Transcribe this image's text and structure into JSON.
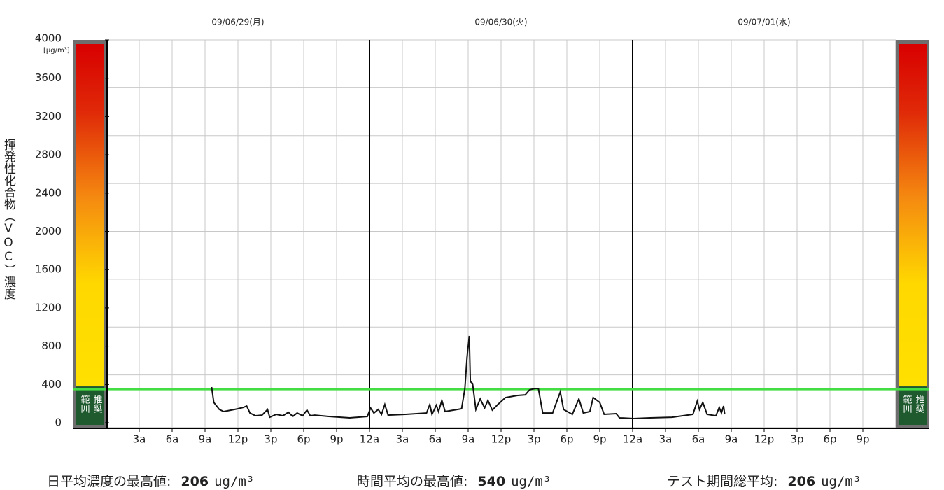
{
  "chart_data": {
    "type": "line",
    "days": [
      "09/06/29(月)",
      "09/06/30(火)",
      "09/07/01(水)"
    ],
    "unit_label": "[μg/m³]",
    "y_label": "揮発性化合物（VOC）濃度",
    "recommended_label": [
      "推奨",
      "範囲"
    ],
    "reference_line": 350,
    "reference_color": "#44dd44",
    "line_color": "#111111",
    "xlim": [
      0,
      72
    ],
    "ylim": [
      0,
      4000
    ],
    "xticks": [
      {
        "value": 3,
        "label": "3a"
      },
      {
        "value": 6,
        "label": "6a"
      },
      {
        "value": 9,
        "label": "9a"
      },
      {
        "value": 12,
        "label": "12p"
      },
      {
        "value": 15,
        "label": "3p"
      },
      {
        "value": 18,
        "label": "6p"
      },
      {
        "value": 21,
        "label": "9p"
      },
      {
        "value": 24,
        "label": "12a"
      },
      {
        "value": 27,
        "label": "3a"
      },
      {
        "value": 30,
        "label": "6a"
      },
      {
        "value": 33,
        "label": "9a"
      },
      {
        "value": 36,
        "label": "12p"
      },
      {
        "value": 39,
        "label": "3p"
      },
      {
        "value": 42,
        "label": "6p"
      },
      {
        "value": 45,
        "label": "9p"
      },
      {
        "value": 48,
        "label": "12a"
      },
      {
        "value": 51,
        "label": "3a"
      },
      {
        "value": 54,
        "label": "6a"
      },
      {
        "value": 57,
        "label": "9a"
      },
      {
        "value": 60,
        "label": "12p"
      },
      {
        "value": 63,
        "label": "3p"
      },
      {
        "value": 66,
        "label": "6p"
      },
      {
        "value": 69,
        "label": "9p"
      }
    ],
    "yticks": [
      0,
      400,
      800,
      1200,
      1600,
      2000,
      2400,
      2800,
      3200,
      3600,
      4000
    ],
    "ygrid": [
      500,
      1000,
      1500,
      2000,
      2500,
      3000,
      3500,
      4000
    ],
    "day_separators": [
      24,
      48
    ],
    "grid": true,
    "x": [
      9.6,
      9.8,
      10.3,
      10.7,
      11.4,
      12.0,
      12.5,
      12.8,
      13.1,
      13.6,
      14.2,
      14.7,
      14.9,
      15.5,
      16.1,
      16.6,
      17.0,
      17.4,
      17.9,
      18.3,
      18.6,
      19.0,
      20.3,
      22.2,
      23.8,
      24.1,
      24.4,
      24.8,
      25.1,
      25.4,
      25.7,
      27.3,
      29.2,
      29.5,
      29.7,
      30.1,
      30.3,
      30.6,
      30.9,
      32.4,
      32.7,
      32.9,
      33.1,
      33.2,
      33.4,
      33.7,
      34.1,
      34.5,
      34.8,
      35.2,
      35.7,
      36.4,
      37.5,
      38.2,
      38.6,
      39.1,
      39.4,
      39.8,
      40.7,
      41.4,
      41.7,
      42.5,
      43.1,
      43.5,
      44.1,
      44.4,
      45.0,
      45.4,
      46.5,
      46.8,
      48.1,
      49.6,
      51.6,
      53.5,
      53.9,
      54.1,
      54.4,
      54.8,
      55.6,
      55.9,
      56.1,
      56.3,
      56.4
    ],
    "values": [
      373,
      212,
      139,
      117,
      132,
      146,
      161,
      175,
      102,
      73,
      80,
      139,
      58,
      88,
      73,
      110,
      66,
      102,
      73,
      132,
      73,
      80,
      66,
      51,
      66,
      154,
      102,
      139,
      88,
      190,
      80,
      88,
      102,
      190,
      88,
      183,
      117,
      234,
      117,
      146,
      358,
      687,
      907,
      431,
      410,
      139,
      249,
      154,
      234,
      132,
      190,
      263,
      285,
      292,
      344,
      358,
      358,
      102,
      102,
      322,
      139,
      88,
      249,
      102,
      117,
      263,
      212,
      88,
      95,
      51,
      44,
      51,
      58,
      88,
      227,
      139,
      212,
      88,
      73,
      161,
      102,
      175,
      88
    ],
    "stats": [
      {
        "label": "日平均濃度の最高値:",
        "value": 206,
        "unit": "ug/m³"
      },
      {
        "label": "時間平均の最高値:",
        "value": 540,
        "unit": "ug/m³"
      },
      {
        "label": "テスト期間総平均:",
        "value": 206,
        "unit": "ug/m³"
      }
    ]
  }
}
